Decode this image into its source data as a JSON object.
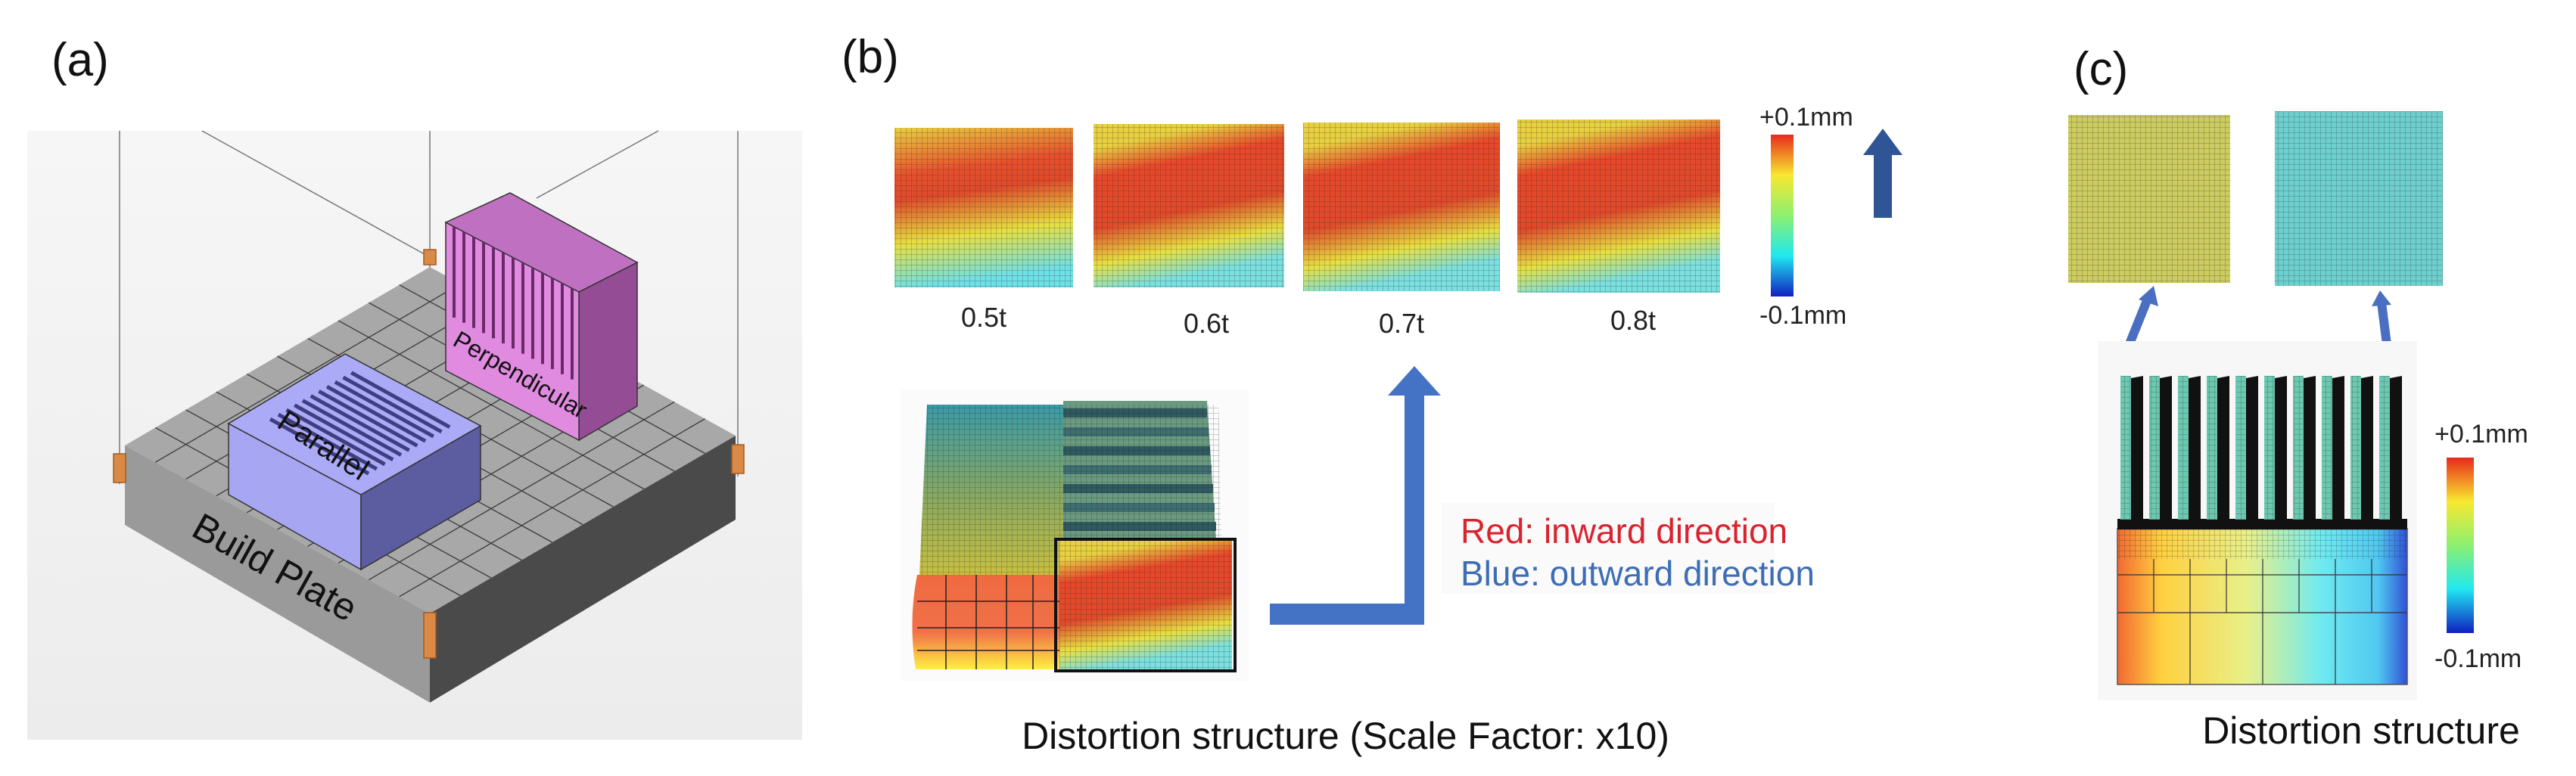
{
  "panels": {
    "a": {
      "label": "(a)",
      "plate_label": "Build Plate",
      "parallel_label": "Parallel",
      "perpendicular_label": "Perpendicular"
    },
    "b": {
      "label": "(b)",
      "thumbnails": [
        {
          "label": "0.5t"
        },
        {
          "label": "0.6t"
        },
        {
          "label": "0.7t"
        },
        {
          "label": "0.8t"
        }
      ],
      "colorbar": {
        "max": "+0.1mm",
        "min": "-0.1mm"
      },
      "legend": {
        "red": "Red: inward direction",
        "blue": "Blue: outward direction"
      },
      "caption": "Distortion structure (Scale Factor: x10)"
    },
    "c": {
      "label": "(c)",
      "colorbar": {
        "max": "+0.1mm",
        "min": "-0.1mm"
      },
      "caption": "Distortion structure"
    }
  },
  "colors": {
    "legend_red": "#d9232e",
    "legend_blue": "#3d6db5",
    "arrow_blue": "#4472c4",
    "arrow_dark_blue": "#2f5597",
    "parallel_block": "#a7a7f5",
    "perpendicular_block": "#d77ad7",
    "plate": "#a3a3a3"
  }
}
